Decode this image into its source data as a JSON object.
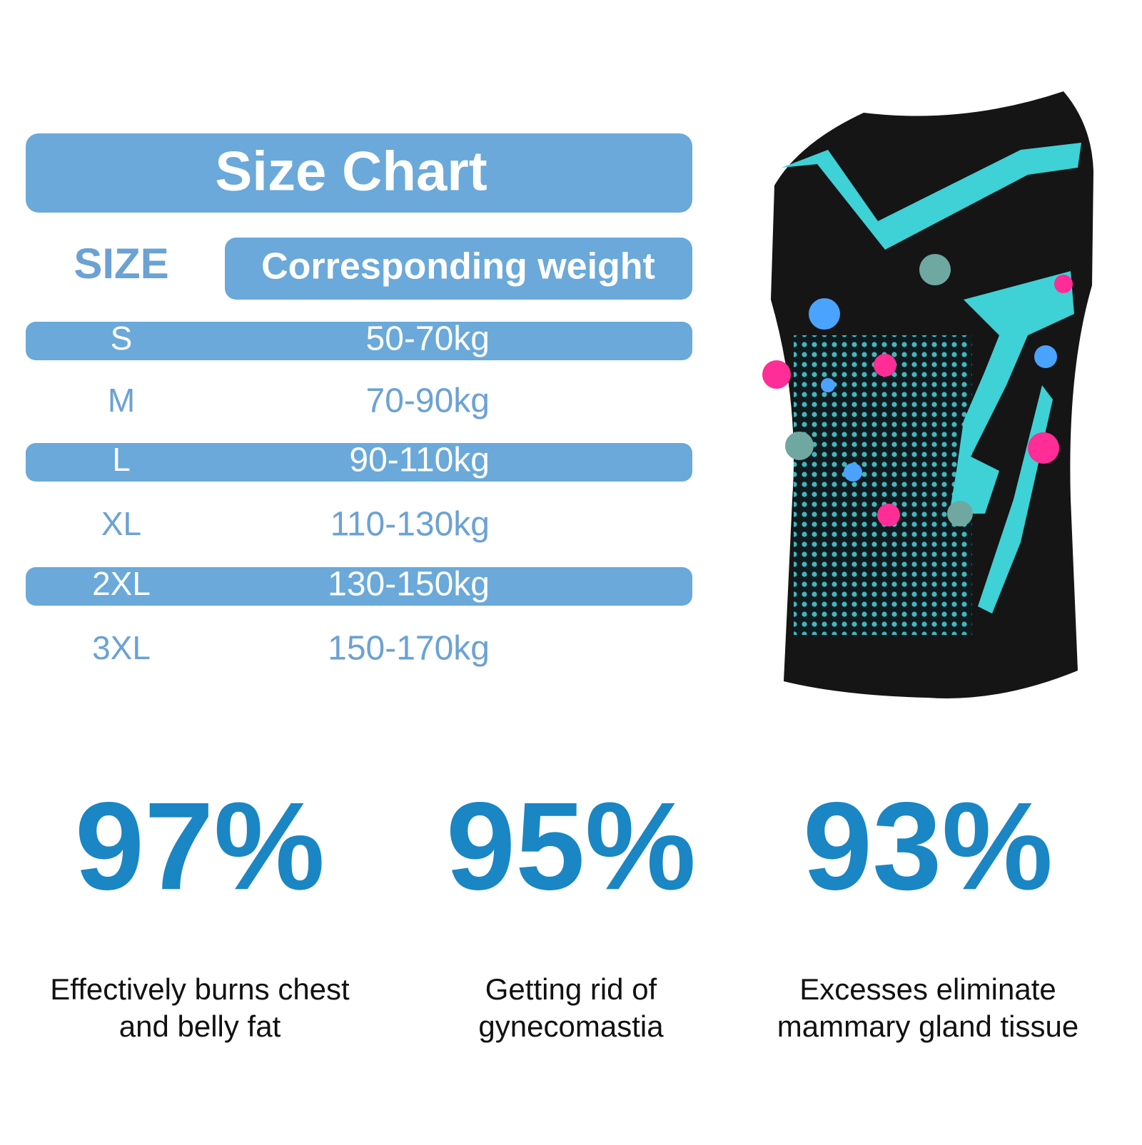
{
  "header": {
    "title": "Size Chart"
  },
  "table": {
    "columns": [
      "SIZE",
      "Corresponding weight"
    ],
    "rows": [
      [
        "S",
        "50-70kg"
      ],
      [
        "M",
        "70-90kg"
      ],
      [
        "L",
        "90-110kg"
      ],
      [
        "XL",
        "110-130kg"
      ],
      [
        "2XL",
        "130-150kg"
      ],
      [
        "3XL",
        "150-170kg"
      ]
    ]
  },
  "stats": [
    {
      "value": "97%",
      "lines": [
        "Effectively burns chest",
        "and belly fat"
      ]
    },
    {
      "value": "95%",
      "lines": [
        "Getting rid of",
        "gynecomastia"
      ]
    },
    {
      "value": "93%",
      "lines": [
        "Excesses eliminate",
        "mammary gland tissue"
      ]
    }
  ]
}
